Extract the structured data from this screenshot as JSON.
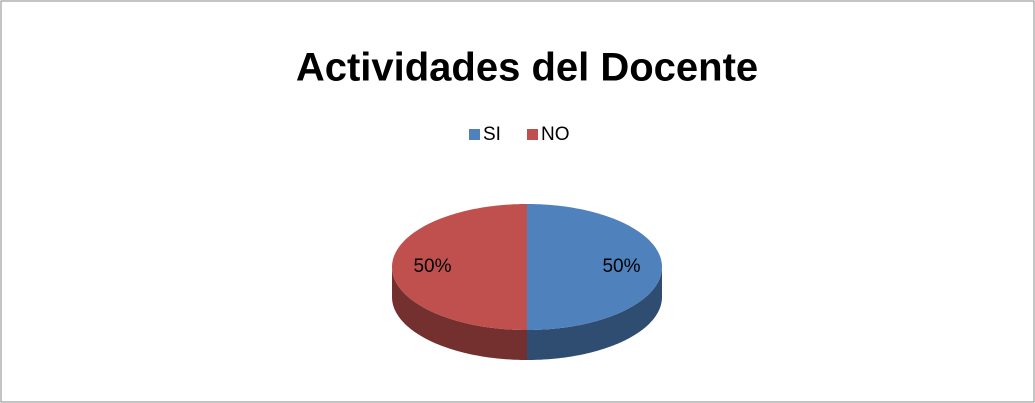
{
  "chart_data": {
    "type": "pie",
    "title": "Actividades del Docente",
    "categories": [
      "SI",
      "NO"
    ],
    "values": [
      50,
      50
    ],
    "value_labels": [
      "50%",
      "50%"
    ],
    "colors": [
      "#4f81bd",
      "#c0504d"
    ],
    "legend": "top"
  }
}
